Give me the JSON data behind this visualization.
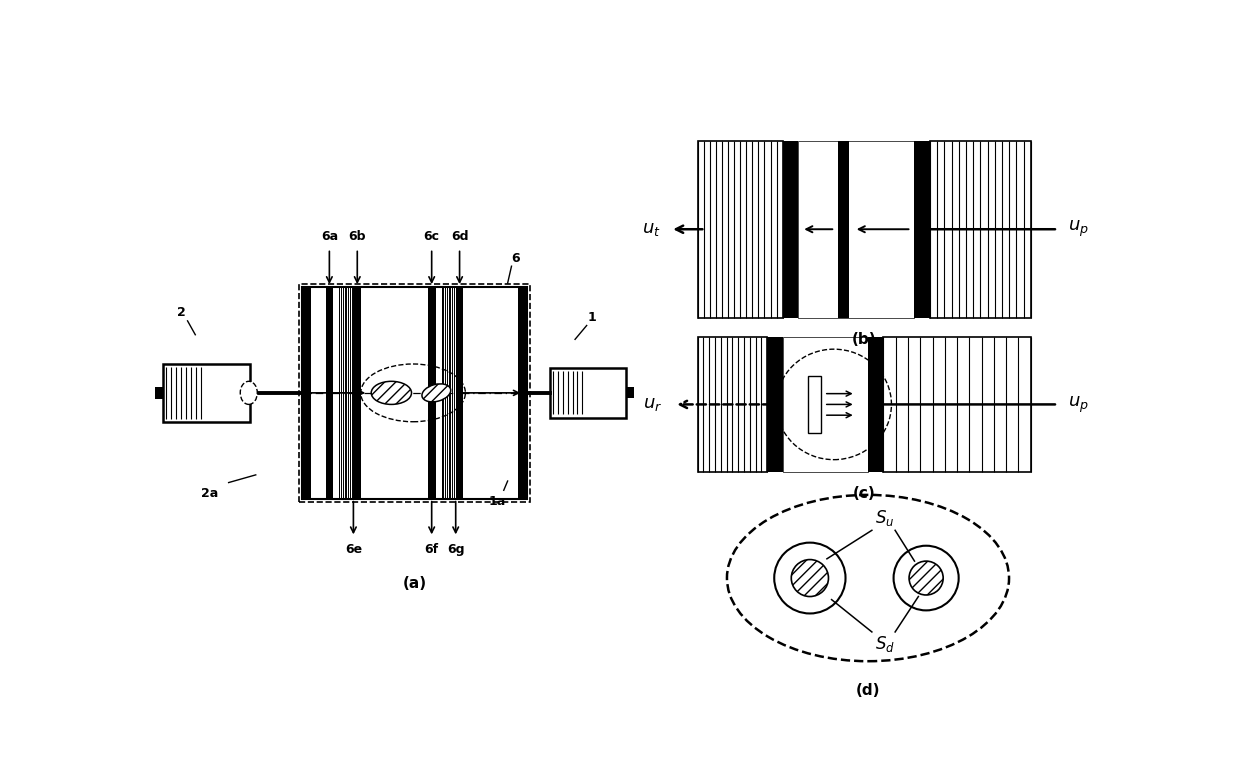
{
  "fig_width": 12.4,
  "fig_height": 7.81,
  "bg_color": "#ffffff",
  "label_a": "(a)",
  "label_b": "(b)",
  "label_c": "(c)",
  "label_d": "(d)",
  "labels_top": [
    "6a",
    "6b",
    "6c",
    "6d"
  ],
  "labels_bottom": [
    "6e",
    "6f",
    "6g"
  ],
  "label_1": "1",
  "label_2": "2",
  "label_1a": "1a",
  "label_2a": "2a",
  "label_6": "6",
  "label_ut": "$u_t$",
  "label_up": "$u_p$",
  "label_ur": "$u_r$",
  "label_Su": "$S_u$",
  "label_Sd": "$S_d$"
}
